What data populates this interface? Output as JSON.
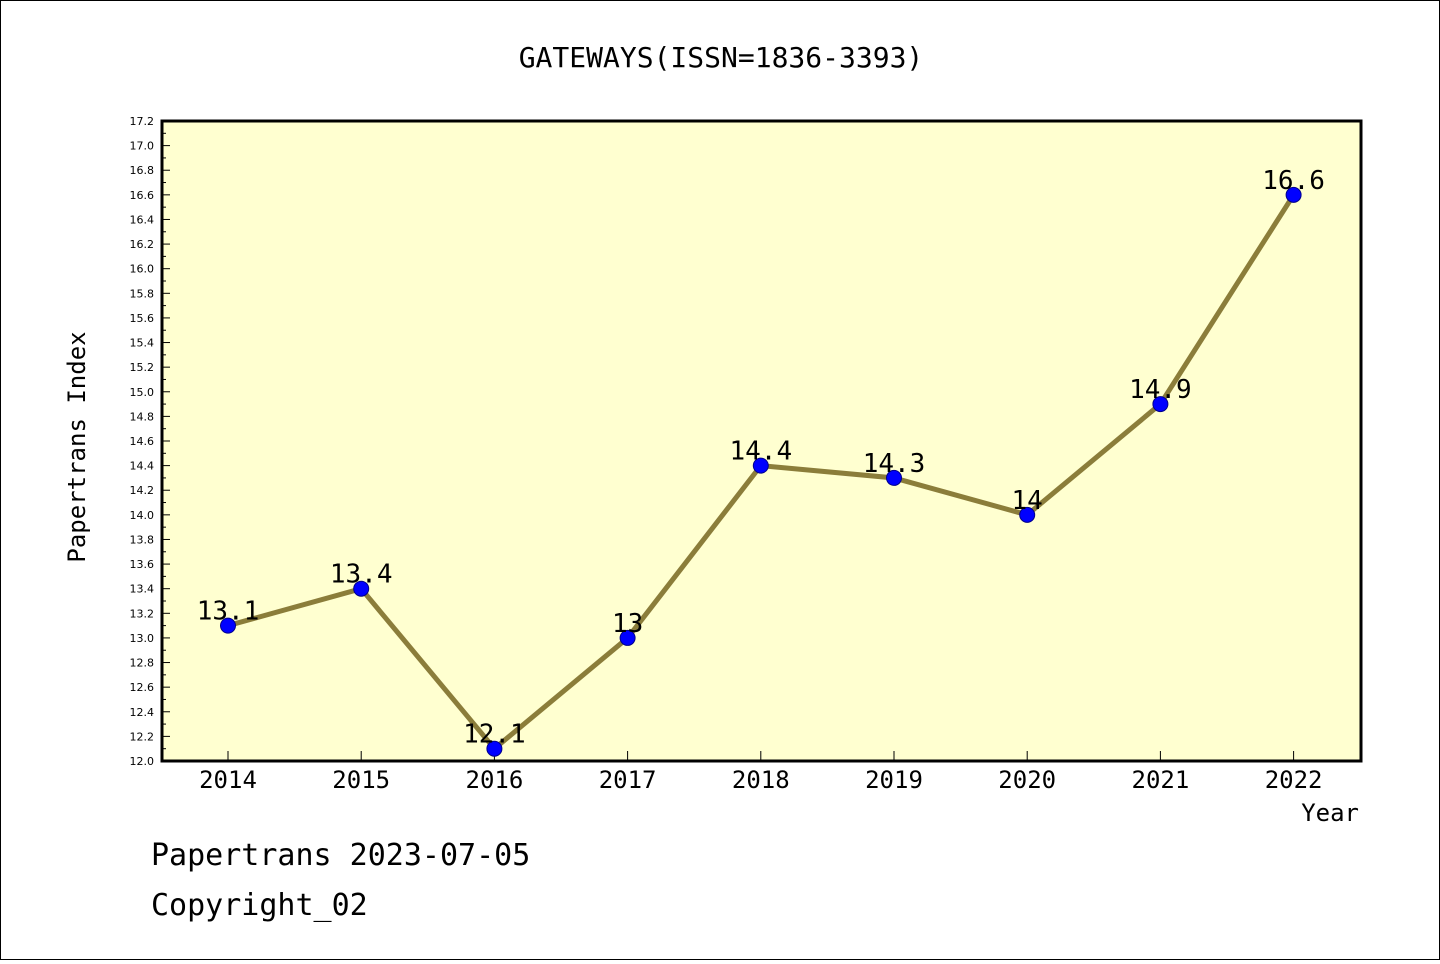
{
  "chart_data": {
    "type": "line",
    "title": "GATEWAYS(ISSN=1836-3393)",
    "xlabel": "Year",
    "ylabel": "Papertrans Index",
    "categories": [
      "2014",
      "2015",
      "2016",
      "2017",
      "2018",
      "2019",
      "2020",
      "2021",
      "2022"
    ],
    "series": [
      {
        "values": [
          13.1,
          13.4,
          12.1,
          13.0,
          14.4,
          14.3,
          14.0,
          14.9,
          16.6
        ]
      }
    ],
    "data_labels": [
      "13.1",
      "13.4",
      "12.1",
      "13",
      "14.4",
      "14.3",
      "14",
      "14.9",
      "16.6"
    ],
    "ylim": [
      12.0,
      17.2
    ],
    "yticks": [
      "12.0",
      "12.2",
      "12.4",
      "12.6",
      "12.8",
      "13.0",
      "13.2",
      "13.4",
      "13.6",
      "13.8",
      "14.0",
      "14.2",
      "14.4",
      "14.6",
      "14.8",
      "15.0",
      "15.2",
      "15.4",
      "15.6",
      "15.8",
      "16.0",
      "16.2",
      "16.4",
      "16.6",
      "16.8",
      "17.0",
      "17.2"
    ],
    "grid": false,
    "colors": {
      "plot_bg": "#ffffd0",
      "line": "#8b7d3a",
      "marker": "#0000ff",
      "marker_edge": "#00008b"
    }
  },
  "footer": {
    "line1": "Papertrans 2023-07-05",
    "line2": "Copyright_02"
  }
}
